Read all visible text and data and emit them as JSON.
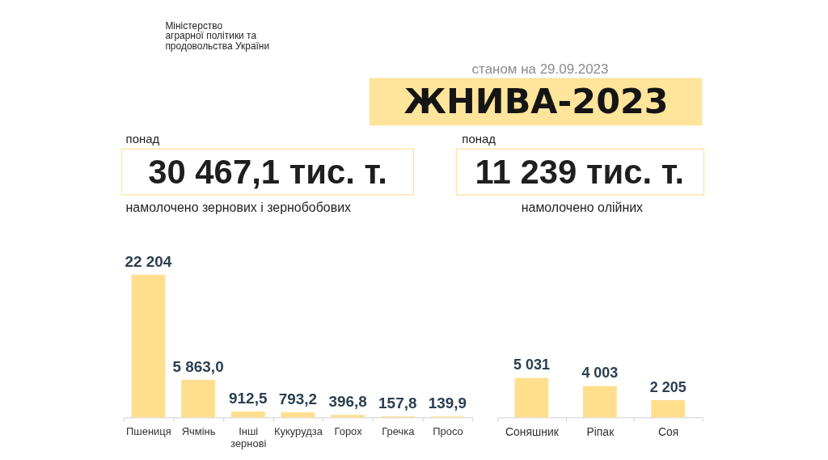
{
  "chart_data": [
    {
      "type": "bar",
      "title": "ЖНИВА-2023",
      "subtitle": "станом на 29.09.2023",
      "annotations": [
        "Міністерство аграрної політики та продовольства України",
        "понад",
        "30 467,1 тис. т.",
        "намолочено зернових і зернобобових"
      ],
      "categories": [
        "Пшениця",
        "Ячмінь",
        "Інші зернові",
        "Кукурудза",
        "Горох",
        "Гречка",
        "Просо"
      ],
      "values": [
        22204,
        5863.0,
        912.5,
        793.2,
        396.8,
        157.8,
        139.9
      ],
      "value_labels": [
        "22 204",
        "5 863,0",
        "912,5",
        "793,2",
        "396,8",
        "157,8",
        "139,9"
      ],
      "color": "#ffdf8e"
    },
    {
      "type": "bar",
      "annotations": [
        "понад",
        "11 239 тис. т.",
        "намолочено олійних"
      ],
      "categories": [
        "Соняшник",
        "Ріпак",
        "Соя"
      ],
      "values": [
        5031,
        4003,
        2205
      ],
      "value_labels": [
        "5 031",
        "4 003",
        "2 205"
      ],
      "color": "#ffdf8e"
    }
  ]
}
